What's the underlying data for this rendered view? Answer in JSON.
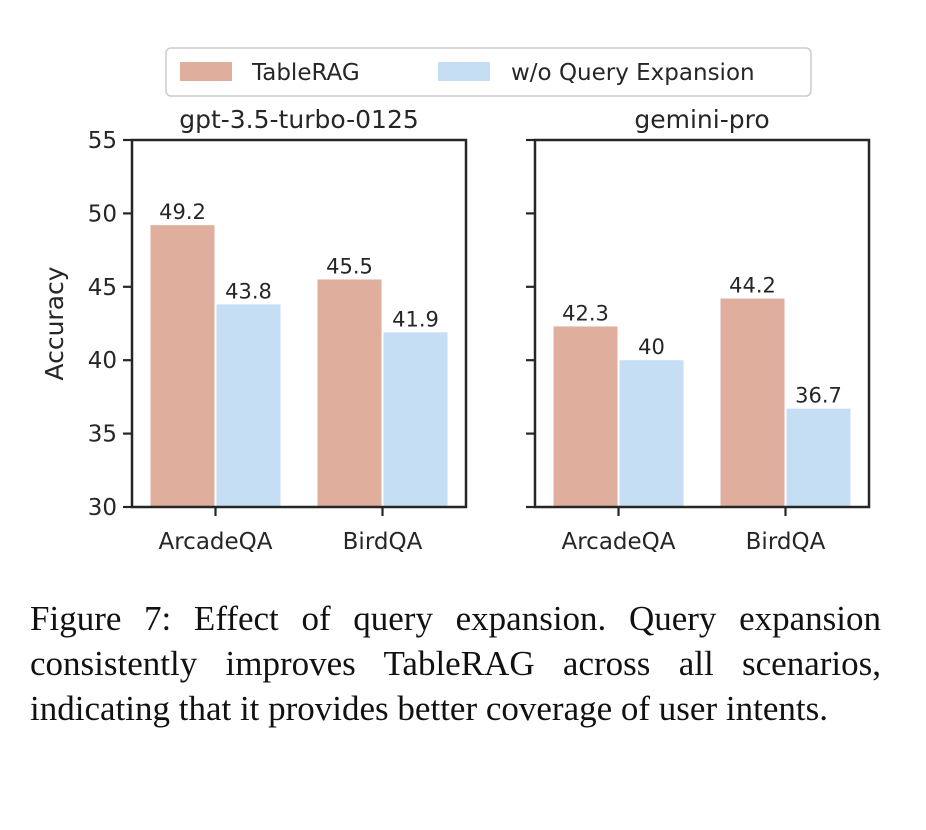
{
  "chart_data": {
    "type": "bar",
    "ylabel": "Accuracy",
    "ylim": [
      30,
      55
    ],
    "yticks": [
      30,
      35,
      40,
      45,
      50,
      55
    ],
    "legend": {
      "position": "top-center",
      "entries": [
        "TableRAG",
        "w/o Query Expansion"
      ]
    },
    "colors": {
      "TableRAG": "#dfae9c",
      "w/o Query Expansion": "#c5def3"
    },
    "panels": [
      {
        "title": "gpt-3.5-turbo-0125",
        "categories": [
          "ArcadeQA",
          "BirdQA"
        ],
        "series": [
          {
            "name": "TableRAG",
            "values": [
              49.2,
              45.5
            ],
            "labels": [
              "49.2",
              "45.5"
            ]
          },
          {
            "name": "w/o Query Expansion",
            "values": [
              43.8,
              41.9
            ],
            "labels": [
              "43.8",
              "41.9"
            ]
          }
        ]
      },
      {
        "title": "gemini-pro",
        "categories": [
          "ArcadeQA",
          "BirdQA"
        ],
        "series": [
          {
            "name": "TableRAG",
            "values": [
              42.3,
              44.2
            ],
            "labels": [
              "42.3",
              "44.2"
            ]
          },
          {
            "name": "w/o Query Expansion",
            "values": [
              40,
              36.7
            ],
            "labels": [
              "40",
              "36.7"
            ]
          }
        ]
      }
    ]
  },
  "caption": "Figure 7:  Effect of query expansion.  Query expansion consistently improves TableRAG across all scenarios, indicating that it provides better coverage of user intents."
}
